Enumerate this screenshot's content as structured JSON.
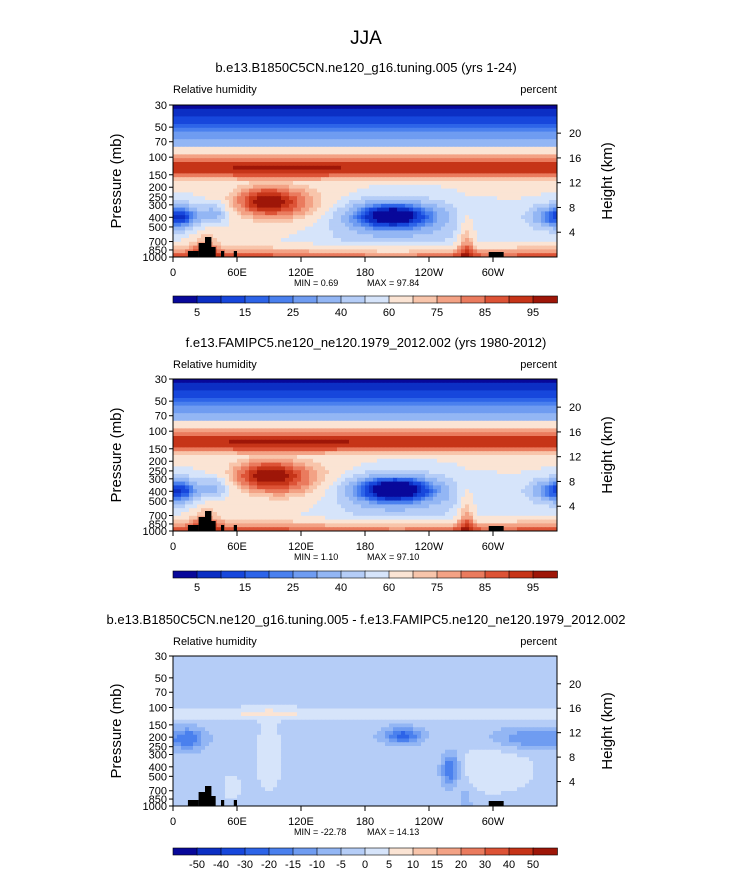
{
  "figure": {
    "title": "JJA",
    "variable_label": "Relative humidity",
    "units_label": "percent",
    "y_label": "Pressure (mb)",
    "y2_label": "Height (km)"
  },
  "chart_data": [
    {
      "type": "contour",
      "title": "b.e13.B1850C5CN.ne120_g16.tuning.005 (yrs 1-24)",
      "variable": "Relative humidity",
      "units": "percent",
      "xlabel": "",
      "ylabel": "Pressure (mb)",
      "y2label": "Height (km)",
      "x_ticks": [
        "0",
        "60E",
        "120E",
        "180",
        "120W",
        "60W"
      ],
      "x_tick_values": [
        0,
        60,
        120,
        180,
        240,
        300
      ],
      "xlim": [
        0,
        360
      ],
      "y_ticks": [
        "30",
        "50",
        "70",
        "100",
        "150",
        "200",
        "250",
        "300",
        "400",
        "500",
        "700",
        "850",
        "1000"
      ],
      "y_tick_values": [
        30,
        50,
        70,
        100,
        150,
        200,
        250,
        300,
        400,
        500,
        700,
        850,
        1000
      ],
      "ylim": [
        1000,
        30
      ],
      "y2_ticks": [
        "20",
        "16",
        "12",
        "8",
        "4"
      ],
      "y2_tick_values": [
        20,
        16,
        12,
        8,
        4
      ],
      "min_label": "MIN =    0.69",
      "max_label": "MAX =   97.84",
      "min": 0.69,
      "max": 97.84,
      "colorbar_labels": [
        "5",
        "15",
        "25",
        "40",
        "60",
        "75",
        "85",
        "95"
      ],
      "colorbar_levels": [
        5,
        10,
        15,
        20,
        25,
        30,
        40,
        50,
        60,
        70,
        75,
        80,
        85,
        90,
        95
      ]
    },
    {
      "type": "contour",
      "title": "f.e13.FAMIPC5.ne120_ne120.1979_2012.002 (yrs 1980-2012)",
      "variable": "Relative humidity",
      "units": "percent",
      "xlabel": "",
      "ylabel": "Pressure (mb)",
      "y2label": "Height (km)",
      "x_ticks": [
        "0",
        "60E",
        "120E",
        "180",
        "120W",
        "60W"
      ],
      "x_tick_values": [
        0,
        60,
        120,
        180,
        240,
        300
      ],
      "xlim": [
        0,
        360
      ],
      "y_ticks": [
        "30",
        "50",
        "70",
        "100",
        "150",
        "200",
        "250",
        "300",
        "400",
        "500",
        "700",
        "850",
        "1000"
      ],
      "y_tick_values": [
        30,
        50,
        70,
        100,
        150,
        200,
        250,
        300,
        400,
        500,
        700,
        850,
        1000
      ],
      "ylim": [
        1000,
        30
      ],
      "y2_ticks": [
        "20",
        "16",
        "12",
        "8",
        "4"
      ],
      "y2_tick_values": [
        20,
        16,
        12,
        8,
        4
      ],
      "min_label": "MIN =    1.10",
      "max_label": "MAX =   97.10",
      "min": 1.1,
      "max": 97.1,
      "colorbar_labels": [
        "5",
        "15",
        "25",
        "40",
        "60",
        "75",
        "85",
        "95"
      ],
      "colorbar_levels": [
        5,
        10,
        15,
        20,
        25,
        30,
        40,
        50,
        60,
        70,
        75,
        80,
        85,
        90,
        95
      ]
    },
    {
      "type": "contour",
      "title": "b.e13.B1850C5CN.ne120_g16.tuning.005 - f.e13.FAMIPC5.ne120_ne120.1979_2012.002",
      "variable": "Relative humidity",
      "units": "percent",
      "xlabel": "",
      "ylabel": "Pressure (mb)",
      "y2label": "Height (km)",
      "x_ticks": [
        "0",
        "60E",
        "120E",
        "180",
        "120W",
        "60W"
      ],
      "x_tick_values": [
        0,
        60,
        120,
        180,
        240,
        300
      ],
      "xlim": [
        0,
        360
      ],
      "y_ticks": [
        "30",
        "50",
        "70",
        "100",
        "150",
        "200",
        "250",
        "300",
        "400",
        "500",
        "700",
        "850",
        "1000"
      ],
      "y_tick_values": [
        30,
        50,
        70,
        100,
        150,
        200,
        250,
        300,
        400,
        500,
        700,
        850,
        1000
      ],
      "ylim": [
        1000,
        30
      ],
      "y2_ticks": [
        "20",
        "16",
        "12",
        "8",
        "4"
      ],
      "y2_tick_values": [
        20,
        16,
        12,
        8,
        4
      ],
      "min_label": "MIN =  -22.78",
      "max_label": "MAX =   14.13",
      "min": -22.78,
      "max": 14.13,
      "colorbar_labels": [
        "-50",
        "-40",
        "-30",
        "-20",
        "-15",
        "-10",
        "-5",
        "0",
        "5",
        "10",
        "15",
        "20",
        "30",
        "40",
        "50"
      ],
      "colorbar_levels": [
        -50,
        -40,
        -30,
        -20,
        -15,
        -10,
        -5,
        0,
        5,
        10,
        15,
        20,
        30,
        40,
        50
      ]
    }
  ],
  "colors": {
    "colorbar16": [
      "#08089a",
      "#0c2fc4",
      "#1747dc",
      "#2d64e8",
      "#4a80ee",
      "#6f9cf1",
      "#93b6f4",
      "#b5cdf7",
      "#d6e4fa",
      "#fbe4d4",
      "#f8c5ab",
      "#f3a285",
      "#ea7b5e",
      "#dd5336",
      "#c63418",
      "#9e1608"
    ],
    "ground": "#000000"
  }
}
